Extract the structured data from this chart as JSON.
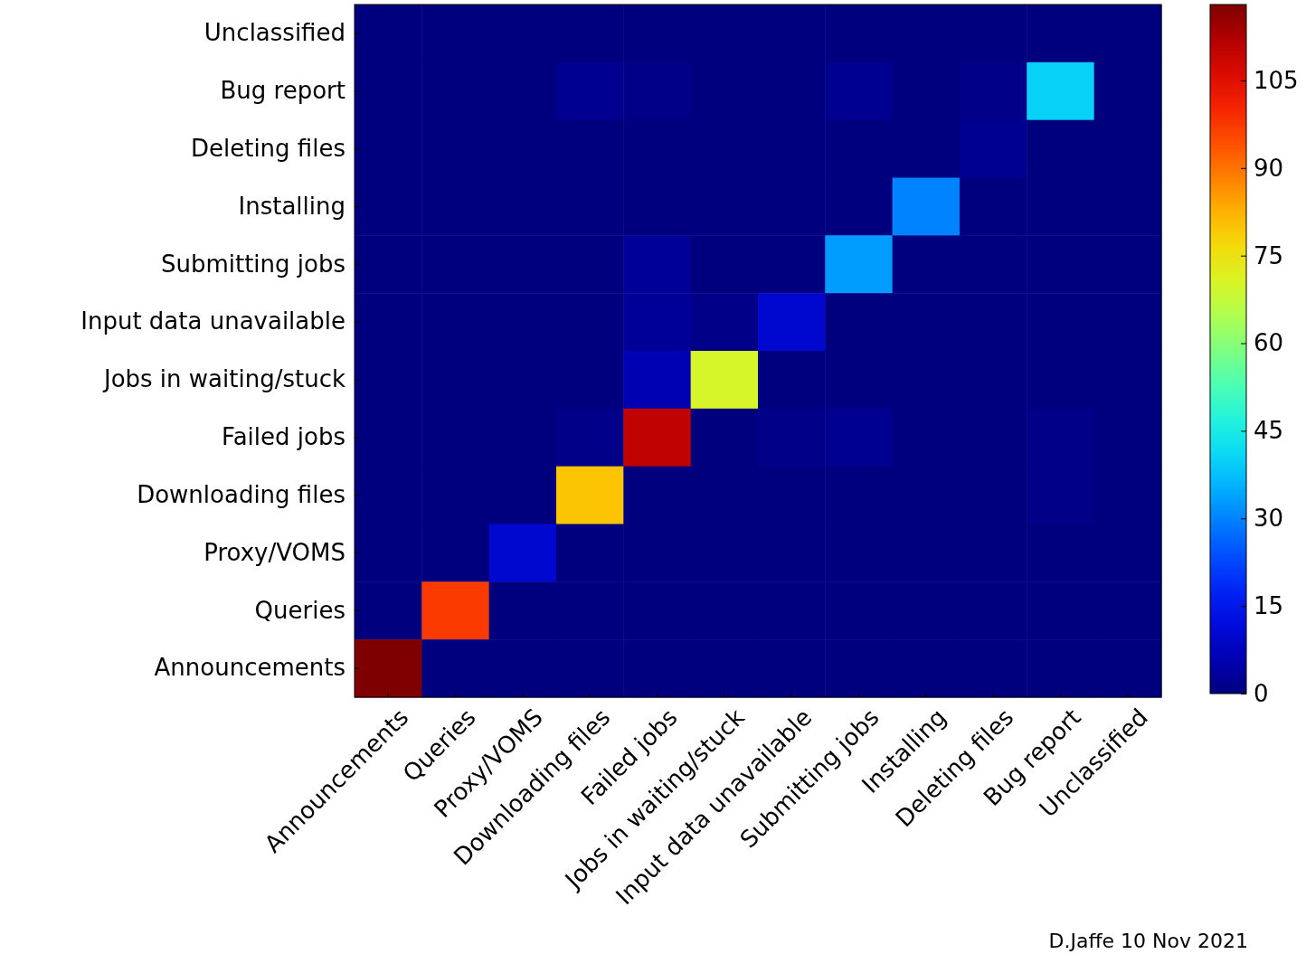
{
  "chart_data": {
    "type": "heatmap",
    "categories": [
      "Announcements",
      "Queries",
      "Proxy/VOMS",
      "Downloading files",
      "Failed jobs",
      "Jobs in waiting/stuck",
      "Input data unavailable",
      "Submitting jobs",
      "Installing",
      "Deleting files",
      "Bug report",
      "Unclassified"
    ],
    "y_categories": [
      "Unclassified",
      "Bug report",
      "Deleting files",
      "Installing",
      "Submitting jobs",
      "Input data unavailable",
      "Jobs in waiting/stuck",
      "Failed jobs",
      "Downloading files",
      "Proxy/VOMS",
      "Queries",
      "Announcements"
    ],
    "cells": [
      [
        0,
        0,
        0,
        0,
        0,
        0,
        0,
        0,
        0,
        0,
        0,
        0
      ],
      [
        0,
        0,
        0,
        2,
        1,
        0,
        0,
        2,
        0,
        1,
        40,
        0
      ],
      [
        0,
        0,
        0,
        0,
        0,
        0,
        0,
        0,
        0,
        2,
        0,
        0
      ],
      [
        0,
        0,
        0,
        0,
        0,
        0,
        0,
        0,
        30,
        0,
        0,
        0
      ],
      [
        0,
        0,
        0,
        0,
        3,
        0,
        0,
        33,
        0,
        0,
        0,
        0
      ],
      [
        0,
        0,
        0,
        0,
        3,
        1,
        10,
        0,
        0,
        0,
        0,
        0
      ],
      [
        0,
        0,
        0,
        0,
        6,
        70,
        0,
        0,
        0,
        0,
        0,
        0
      ],
      [
        0,
        0,
        0,
        1,
        110,
        0,
        1,
        2,
        0,
        0,
        1,
        0
      ],
      [
        0,
        0,
        0,
        80,
        0,
        0,
        0,
        0,
        0,
        0,
        1,
        0
      ],
      [
        0,
        0,
        10,
        0,
        0,
        0,
        0,
        0,
        0,
        0,
        0,
        0
      ],
      [
        0,
        97,
        0,
        0,
        0,
        0,
        0,
        0,
        0,
        0,
        0,
        0
      ],
      [
        118,
        0,
        0,
        0,
        0,
        0,
        0,
        0,
        0,
        0,
        0,
        0
      ]
    ],
    "clim": [
      0,
      118
    ],
    "cticks": [
      0,
      15,
      30,
      45,
      60,
      75,
      90,
      105
    ],
    "annotations": [
      "D.Jaffe 10 Nov 2021"
    ]
  }
}
